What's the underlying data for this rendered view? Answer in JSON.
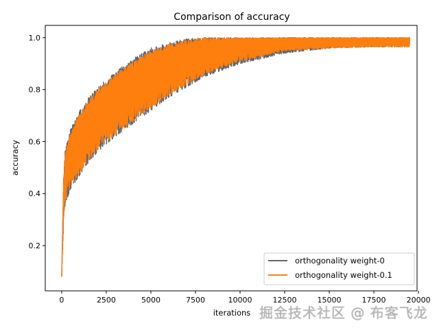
{
  "chart_data": {
    "type": "line",
    "title": "Comparison of accuracy",
    "xlabel": "iterations",
    "ylabel": "accuracy",
    "xlim": [
      -920,
      19920
    ],
    "ylim": [
      0.026,
      1.047
    ],
    "xticks": [
      0,
      2500,
      5000,
      7500,
      10000,
      12500,
      15000,
      17500,
      20000
    ],
    "xtick_labels": [
      "0",
      "2500",
      "5000",
      "7500",
      "10000",
      "12500",
      "15000",
      "17500",
      "20000"
    ],
    "yticks": [
      0.2,
      0.4,
      0.6,
      0.8,
      1.0
    ],
    "ytick_labels": [
      "0.2",
      "0.4",
      "0.6",
      "0.8",
      "1.0"
    ],
    "legend_position": "bottom-right",
    "grid": false,
    "series": [
      {
        "name": "orthogonality weight-0",
        "color": "#5f6670",
        "x_end": 19500,
        "envelope": {
          "x": [
            0,
            100,
            200,
            500,
            1000,
            1500,
            2000,
            3000,
            4000,
            5000,
            6000,
            7000,
            8000,
            10000,
            12500,
            15000,
            17500,
            19500
          ],
          "upper": [
            0.08,
            0.45,
            0.57,
            0.65,
            0.72,
            0.77,
            0.81,
            0.87,
            0.92,
            0.96,
            0.98,
            0.995,
            1.0,
            1.0,
            1.0,
            1.0,
            1.0,
            1.0
          ],
          "lower": [
            0.08,
            0.28,
            0.36,
            0.42,
            0.47,
            0.52,
            0.56,
            0.62,
            0.67,
            0.72,
            0.77,
            0.81,
            0.85,
            0.9,
            0.94,
            0.96,
            0.965,
            0.965
          ]
        }
      },
      {
        "name": "orthogonality weight-0.1",
        "color": "#ff7f0e",
        "x_end": 19500,
        "envelope": {
          "x": [
            0,
            100,
            200,
            500,
            1000,
            1500,
            2000,
            3000,
            4000,
            5000,
            6000,
            7000,
            8000,
            10000,
            12500,
            15000,
            17500,
            19500
          ],
          "upper": [
            0.08,
            0.44,
            0.56,
            0.64,
            0.71,
            0.76,
            0.8,
            0.86,
            0.91,
            0.95,
            0.975,
            0.99,
            1.0,
            1.0,
            1.0,
            1.0,
            1.0,
            1.0
          ],
          "lower": [
            0.08,
            0.3,
            0.37,
            0.43,
            0.48,
            0.53,
            0.57,
            0.63,
            0.68,
            0.73,
            0.78,
            0.82,
            0.86,
            0.91,
            0.95,
            0.96,
            0.965,
            0.965
          ]
        }
      }
    ]
  },
  "watermark": "掘金技术社区 @ 布客飞龙"
}
